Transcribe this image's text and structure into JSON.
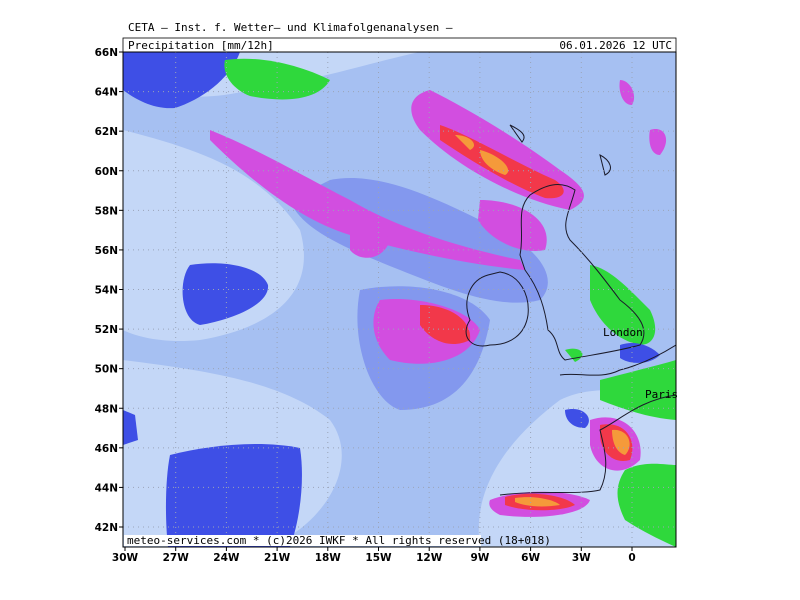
{
  "header": {
    "institute": "CETA – Inst. f. Wetter– und Klimafolgenanalysen –",
    "variable": "Precipitation [mm/12h]",
    "valid_time": "06.01.2026 12 UTC"
  },
  "map": {
    "lat_labels": [
      "66N",
      "64N",
      "62N",
      "60N",
      "58N",
      "56N",
      "54N",
      "52N",
      "50N",
      "48N",
      "46N",
      "44N",
      "42N"
    ],
    "lon_labels": [
      "30W",
      "27W",
      "24W",
      "21W",
      "18W",
      "15W",
      "12W",
      "9W",
      "6W",
      "3W",
      "0"
    ],
    "places": [
      "London",
      "Paris"
    ]
  },
  "footer": "meteo-services.com * (c)2026 IWKF * All rights reserved (18+018)"
}
